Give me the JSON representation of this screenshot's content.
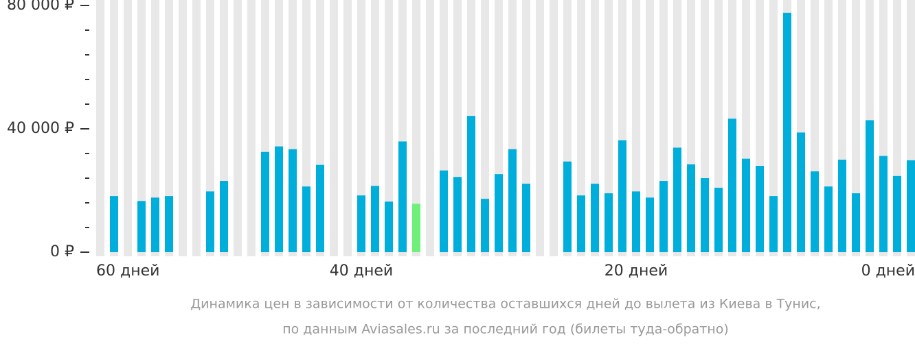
{
  "chart_data": {
    "type": "bar",
    "categories": [
      "60 дней",
      null,
      null,
      null,
      null,
      null,
      null,
      null,
      null,
      null,
      null,
      null,
      null,
      null,
      null,
      null,
      null,
      null,
      null,
      "40 дней",
      null,
      null,
      null,
      null,
      null,
      null,
      null,
      null,
      null,
      null,
      null,
      null,
      null,
      null,
      null,
      null,
      null,
      null,
      null,
      "20 дней",
      null,
      null,
      null,
      null,
      null,
      null,
      null,
      null,
      null,
      null,
      null,
      null,
      null,
      null,
      null,
      null,
      null,
      null,
      null,
      "0 дней"
    ],
    "values": [
      null,
      18200,
      null,
      16600,
      17700,
      18200,
      null,
      null,
      19700,
      23100,
      null,
      null,
      32500,
      34300,
      33400,
      21300,
      28300,
      null,
      null,
      18400,
      21500,
      16400,
      35900,
      15700,
      null,
      26500,
      24400,
      44200,
      17300,
      25300,
      33400,
      22200,
      null,
      null,
      29400,
      18400,
      22200,
      19100,
      36300,
      19700,
      17700,
      23100,
      33900,
      28500,
      24000,
      20900,
      43300,
      30300,
      28000,
      18200,
      77600,
      38800,
      26200,
      21300,
      30000,
      19100,
      42800,
      31200,
      24700,
      29800
    ],
    "colors": [
      "#00aedb",
      "#00aedb",
      "#00aedb",
      "#00aedb",
      "#00aedb",
      "#00aedb",
      "#00aedb",
      "#00aedb",
      "#00aedb",
      "#00aedb",
      "#00aedb",
      "#00aedb",
      "#00aedb",
      "#00aedb",
      "#00aedb",
      "#00aedb",
      "#00aedb",
      "#00aedb",
      "#00aedb",
      "#00aedb",
      "#00aedb",
      "#00aedb",
      "#00aedb",
      "#6ef07a",
      "#00aedb",
      "#00aedb",
      "#00aedb",
      "#00aedb",
      "#00aedb",
      "#00aedb",
      "#00aedb",
      "#00aedb",
      "#00aedb",
      "#00aedb",
      "#00aedb",
      "#00aedb",
      "#00aedb",
      "#00aedb",
      "#00aedb",
      "#00aedb",
      "#00aedb",
      "#00aedb",
      "#00aedb",
      "#00aedb",
      "#00aedb",
      "#00aedb",
      "#00aedb",
      "#00aedb",
      "#00aedb",
      "#00aedb",
      "#00aedb",
      "#00aedb",
      "#00aedb",
      "#00aedb",
      "#00aedb",
      "#00aedb",
      "#00aedb",
      "#00aedb",
      "#00aedb",
      "#00aedb"
    ],
    "ylim": [
      0,
      80000
    ],
    "yticks": [
      {
        "value": 0,
        "label": "0 ₽"
      },
      {
        "value": 40000,
        "label": "40 000 ₽"
      },
      {
        "value": 80000,
        "label": "80 000 ₽"
      }
    ],
    "yminor": [
      8000,
      16000,
      24000,
      32000,
      48000,
      56000,
      64000,
      72000
    ],
    "caption": [
      "Динамика цен в зависимости от количества оставшихся дней до вылета из Киева в Тунис,",
      "по данным Aviasales.ru за последний год (билеты туда-обратно)"
    ]
  }
}
